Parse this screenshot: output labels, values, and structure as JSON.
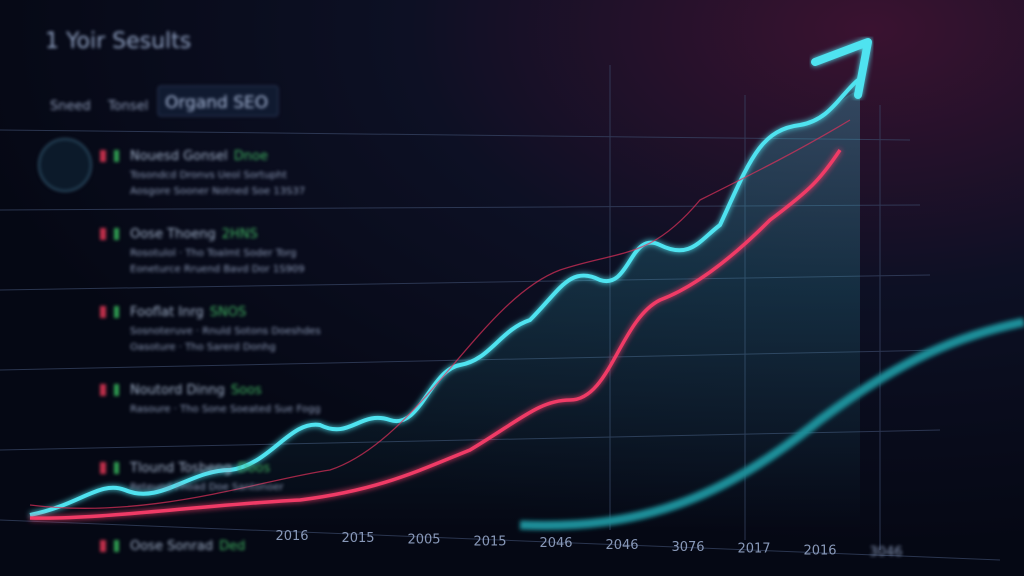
{
  "header": {
    "title": "1 Yoir Sesults"
  },
  "tabs": [
    "Sneed",
    "Tonsel",
    "Organd SEO"
  ],
  "items": [
    {
      "title": "Nouesd Gonsel",
      "tag": "Dnoe",
      "lines": [
        "Tosondcd Dronvs Ueol Sortupht",
        "Aosgore Sooner Notned Soe 13S37"
      ]
    },
    {
      "title": "Oose Thoeng",
      "tag": "2HNS",
      "lines": [
        "Rosotulol · Tho Toalmt Soder Torg",
        "Eoneturce Rruend Bavd Dor 1S909"
      ]
    },
    {
      "title": "Fooflat Inrg",
      "tag": "SNOS",
      "lines": [
        "Sosnoteruve · Rnuld Sotons Doeshdes",
        "Oasoture · Tho Sarerd Donhg"
      ]
    },
    {
      "title": "Noutord Dinng",
      "tag": "Soos",
      "lines": [
        "Rasoure · Tho Sone Soeated Sue Fogg"
      ]
    },
    {
      "title": "Tlound Tosbeng",
      "tag": "Doos",
      "lines": [
        "Reteund Fnoad Doe Santonoer"
      ]
    },
    {
      "title": "Oose Sonrad",
      "tag": "Ded",
      "lines": []
    }
  ],
  "xlabels": [
    "2016",
    "2015",
    "2005",
    "2015",
    "2046",
    "2046",
    "3076",
    "2017",
    "2016",
    "3046"
  ]
}
